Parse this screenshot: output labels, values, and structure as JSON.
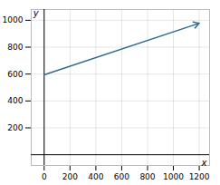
{
  "chart_data": {
    "type": "line",
    "x": [
      0,
      1200
    ],
    "values": [
      594,
      978
    ],
    "color": "#2e6b8a",
    "xlabel": "x",
    "ylabel": "y",
    "xlim": [
      -100,
      1280
    ],
    "ylim": [
      -80,
      1080
    ],
    "xticks": [
      0,
      200,
      400,
      600,
      800,
      1000,
      1200
    ],
    "yticks": [
      200,
      400,
      600,
      800,
      1000
    ],
    "grid": true
  }
}
